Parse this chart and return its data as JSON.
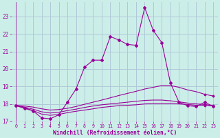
{
  "xlabel": "Windchill (Refroidissement éolien,°C)",
  "bg_color": "#cceee8",
  "grid_color": "#b0c8d8",
  "line_color": "#990099",
  "xlim": [
    -0.5,
    23.5
  ],
  "ylim": [
    17,
    23.8
  ],
  "yticks": [
    17,
    18,
    19,
    20,
    21,
    22,
    23
  ],
  "xticks": [
    0,
    1,
    2,
    3,
    4,
    5,
    6,
    7,
    8,
    9,
    10,
    11,
    12,
    13,
    14,
    15,
    16,
    17,
    18,
    19,
    20,
    21,
    22,
    23
  ],
  "line1_x": [
    0,
    1,
    2,
    3,
    4,
    5,
    6,
    7,
    8,
    9,
    10,
    11,
    12,
    13,
    14,
    15,
    16,
    17,
    18,
    19,
    20,
    21,
    22,
    23
  ],
  "line1_y": [
    17.9,
    17.75,
    17.6,
    17.2,
    17.15,
    17.38,
    18.1,
    18.85,
    20.1,
    20.5,
    20.5,
    21.85,
    21.65,
    21.4,
    21.35,
    23.5,
    22.2,
    21.5,
    19.2,
    18.1,
    17.9,
    17.85,
    18.1,
    17.85
  ],
  "line2_x": [
    0,
    1,
    2,
    3,
    4,
    5,
    6,
    7,
    8,
    9,
    10,
    11,
    12,
    13,
    14,
    15,
    16,
    17,
    18,
    19,
    20,
    21,
    22,
    23
  ],
  "line2_y": [
    17.92,
    17.88,
    17.82,
    17.72,
    17.65,
    17.68,
    17.75,
    17.85,
    17.98,
    18.1,
    18.22,
    18.35,
    18.48,
    18.6,
    18.72,
    18.85,
    18.95,
    19.05,
    19.05,
    18.95,
    18.8,
    18.7,
    18.55,
    18.45
  ],
  "line3_x": [
    0,
    1,
    2,
    3,
    4,
    5,
    6,
    7,
    8,
    9,
    10,
    11,
    12,
    13,
    14,
    15,
    16,
    17,
    18,
    19,
    20,
    21,
    22,
    23
  ],
  "line3_y": [
    17.92,
    17.78,
    17.62,
    17.42,
    17.35,
    17.4,
    17.5,
    17.58,
    17.65,
    17.72,
    17.8,
    17.85,
    17.9,
    17.92,
    17.95,
    18.0,
    18.02,
    18.02,
    18.02,
    18.0,
    17.97,
    17.92,
    17.92,
    17.88
  ],
  "line4_x": [
    0,
    1,
    2,
    3,
    4,
    5,
    6,
    7,
    8,
    9,
    10,
    11,
    12,
    13,
    14,
    15,
    16,
    17,
    18,
    19,
    20,
    21,
    22,
    23
  ],
  "line4_y": [
    17.92,
    17.82,
    17.7,
    17.55,
    17.48,
    17.52,
    17.62,
    17.7,
    17.8,
    17.88,
    17.95,
    18.0,
    18.05,
    18.1,
    18.15,
    18.2,
    18.22,
    18.22,
    18.18,
    18.12,
    18.05,
    18.0,
    17.97,
    17.9
  ]
}
